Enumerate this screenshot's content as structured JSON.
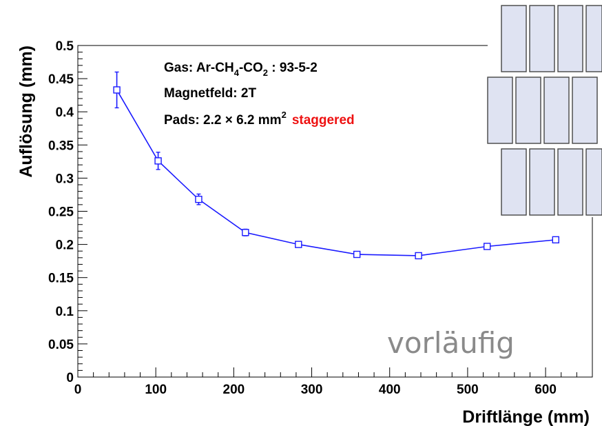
{
  "chart_data": {
    "type": "line",
    "xlabel": "Driftlänge (mm)",
    "ylabel": "Auflösung (mm)",
    "xlim": [
      0,
      660
    ],
    "ylim": [
      0,
      0.5
    ],
    "x_ticks": [
      "0",
      "100",
      "200",
      "300",
      "400",
      "500",
      "600"
    ],
    "x_tick_values": [
      0,
      100,
      200,
      300,
      400,
      500,
      600
    ],
    "y_ticks": [
      "0",
      "0.05",
      "0.1",
      "0.15",
      "0.2",
      "0.25",
      "0.3",
      "0.35",
      "0.4",
      "0.45",
      "0.5"
    ],
    "y_tick_values": [
      0,
      0.05,
      0.1,
      0.15,
      0.2,
      0.25,
      0.3,
      0.35,
      0.4,
      0.45,
      0.5
    ],
    "grid": false,
    "series": [
      {
        "x": [
          50,
          103,
          155,
          215,
          283,
          358,
          437,
          525,
          613
        ],
        "y": [
          0.433,
          0.326,
          0.268,
          0.218,
          0.2,
          0.185,
          0.183,
          0.197,
          0.207
        ],
        "yerr": [
          0.027,
          0.013,
          0.008,
          0.005,
          0.004,
          0.003,
          0.003,
          0.003,
          0.003
        ],
        "color": "#1a1aff",
        "marker": "open-square"
      }
    ],
    "annotations": {
      "gas_prefix": "Gas:  Ar-CH",
      "gas_sub1": "4",
      "gas_mid": "-CO",
      "gas_sub2": "2",
      "gas_suffix": " : 93-5-2",
      "magnet": "Magnetfeld: 2T",
      "pads_text": "Pads: 2.2 × 6.2 mm",
      "pads_sup": "2",
      "pads_staggered": "staggered",
      "staggered_color": "#ee1111"
    },
    "watermark": "vorläufig",
    "inset": {
      "description_icon": "staggered-pad-layout-icon",
      "pad_fill": "#dfe3f2",
      "pad_stroke": "#444444"
    }
  }
}
